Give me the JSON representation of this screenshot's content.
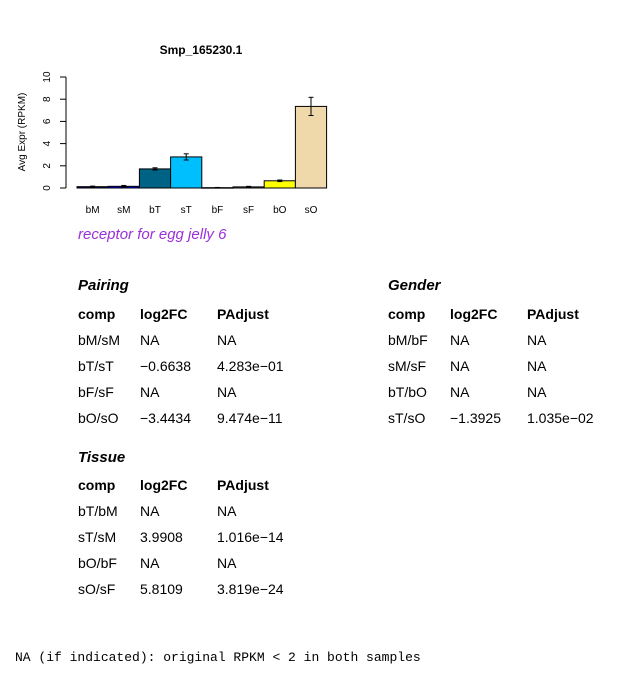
{
  "chart_data": {
    "type": "bar",
    "title": "Smp_165230.1",
    "ylabel": "Avg Expr (RPKM)",
    "xlabel": "",
    "ylim": [
      0,
      10
    ],
    "yticks": [
      0,
      2,
      4,
      6,
      8,
      10
    ],
    "categories": [
      "bM",
      "sM",
      "bT",
      "sT",
      "bF",
      "sF",
      "bO",
      "sO"
    ],
    "values": [
      0.12,
      0.15,
      1.72,
      2.8,
      0.03,
      0.1,
      0.65,
      7.35
    ],
    "errors": [
      0.05,
      0.08,
      0.1,
      0.28,
      0.02,
      0.05,
      0.07,
      0.82
    ],
    "colors": [
      "#000080",
      "#0000ff",
      "#006385",
      "#00bfff",
      "#8b6914",
      "#d2b48c",
      "#ffff00",
      "#efd9ab"
    ],
    "grid": false
  },
  "subtitle": "receptor for egg jelly 6",
  "pairing": {
    "title": "Pairing",
    "headers": [
      "comp",
      "log2FC",
      "PAdjust"
    ],
    "rows": [
      [
        "bM/sM",
        "NA",
        "NA"
      ],
      [
        "bT/sT",
        "−0.6638",
        "4.283e−01"
      ],
      [
        "bF/sF",
        "NA",
        "NA"
      ],
      [
        "bO/sO",
        "−3.4434",
        "9.474e−11"
      ]
    ]
  },
  "gender": {
    "title": "Gender",
    "headers": [
      "comp",
      "log2FC",
      "PAdjust"
    ],
    "rows": [
      [
        "bM/bF",
        "NA",
        "NA"
      ],
      [
        "sM/sF",
        "NA",
        "NA"
      ],
      [
        "bT/bO",
        "NA",
        "NA"
      ],
      [
        "sT/sO",
        "−1.3925",
        "1.035e−02"
      ]
    ]
  },
  "tissue": {
    "title": "Tissue",
    "headers": [
      "comp",
      "log2FC",
      "PAdjust"
    ],
    "rows": [
      [
        "bT/bM",
        "NA",
        "NA"
      ],
      [
        "sT/sM",
        "3.9908",
        "1.016e−14"
      ],
      [
        "bO/bF",
        "NA",
        "NA"
      ],
      [
        "sO/sF",
        "5.8109",
        "3.819e−24"
      ]
    ]
  },
  "footnote": "NA (if indicated): original RPKM < 2 in both samples"
}
